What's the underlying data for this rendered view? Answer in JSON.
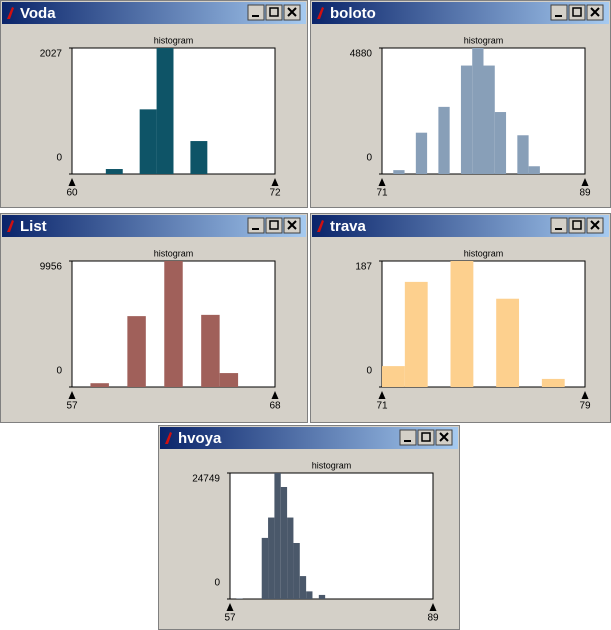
{
  "chart_data": [
    {
      "type": "histogram",
      "title": "Voda",
      "subtitle": "histogram",
      "color": "#0e5467",
      "bins": [
        60,
        61,
        62,
        63,
        64,
        65,
        66,
        67,
        68,
        69,
        70,
        71,
        72
      ],
      "values": [
        0,
        0,
        80,
        0,
        1040,
        2027,
        0,
        530,
        0,
        0,
        0,
        0
      ],
      "xlim": [
        60,
        72
      ],
      "xticks": [
        60,
        72
      ],
      "ylim": [
        0,
        2027
      ],
      "yticks": [
        0,
        2027
      ]
    },
    {
      "type": "histogram",
      "title": "boloto",
      "subtitle": "histogram",
      "color": "#889fb8",
      "bins": [
        71,
        72,
        73,
        74,
        75,
        76,
        77,
        78,
        79,
        80,
        81,
        82,
        83,
        84,
        85,
        86,
        87,
        88,
        89
      ],
      "values": [
        0,
        150,
        0,
        1600,
        0,
        2600,
        0,
        4200,
        4880,
        4200,
        2400,
        0,
        1500,
        300,
        0,
        0,
        0,
        0
      ],
      "xlim": [
        71,
        89
      ],
      "xticks": [
        71,
        89
      ],
      "ylim": [
        0,
        4880
      ],
      "yticks": [
        0,
        4880
      ]
    },
    {
      "type": "histogram",
      "title": "List",
      "subtitle": "histogram",
      "color": "#a0605a",
      "bins": [
        57,
        58,
        59,
        60,
        61,
        62,
        63,
        64,
        65,
        66,
        67,
        68
      ],
      "values": [
        0,
        300,
        0,
        5600,
        0,
        9956,
        0,
        5700,
        1100,
        0,
        0
      ],
      "xlim": [
        57,
        68
      ],
      "xticks": [
        57,
        68
      ],
      "ylim": [
        0,
        9956
      ],
      "yticks": [
        0,
        9956
      ]
    },
    {
      "type": "histogram",
      "title": "trava",
      "subtitle": "histogram",
      "color": "#fdd08e",
      "bins": [
        71,
        71.9,
        72.8,
        73.7,
        74.6,
        75.5,
        76.4,
        77.3,
        78.2,
        79
      ],
      "values": [
        31,
        156,
        0,
        187,
        0,
        131,
        0,
        12,
        0
      ],
      "xlim": [
        71,
        79
      ],
      "xticks": [
        71,
        79
      ],
      "ylim": [
        0,
        187
      ],
      "yticks": [
        0,
        187
      ]
    },
    {
      "type": "histogram",
      "title": "hvoya",
      "subtitle": "histogram",
      "color": "#4a586a",
      "bins": [
        57,
        58,
        59,
        60,
        61,
        62,
        63,
        64,
        65,
        66,
        67,
        68,
        69,
        70,
        71,
        72,
        73,
        74,
        75,
        76,
        77,
        78,
        79,
        80,
        81,
        82,
        83,
        84,
        85,
        86,
        87,
        88,
        89
      ],
      "values": [
        0,
        100,
        0,
        0,
        0,
        12000,
        16000,
        24749,
        22000,
        16000,
        11000,
        4500,
        1500,
        0,
        800,
        0,
        0,
        0,
        0,
        0,
        0,
        0,
        0,
        0,
        0,
        0,
        0,
        0,
        0,
        0,
        0,
        0
      ],
      "xlim": [
        57,
        89
      ],
      "xticks": [
        57,
        89
      ],
      "ylim": [
        0,
        24749
      ],
      "yticks": [
        0,
        24749
      ]
    }
  ]
}
